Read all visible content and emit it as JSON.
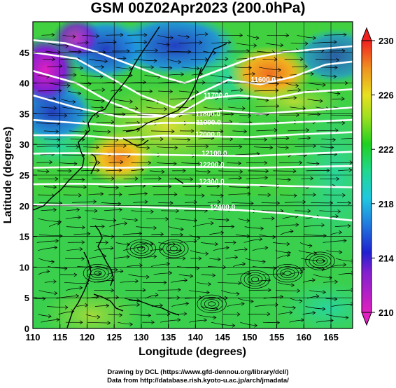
{
  "title": "GSM 00Z02Apr2023 (200.0hPa)",
  "chart_data": {
    "type": "heatmap",
    "title": "GSM 00Z02Apr2023 (200.0hPa)",
    "xlabel": "Longitude (degrees)",
    "ylabel": "Latitude  (degrees)",
    "xlim": [
      110,
      169
    ],
    "ylim": [
      0,
      50
    ],
    "xticks": [
      "110",
      "115",
      "120",
      "125",
      "130",
      "135",
      "140",
      "145",
      "150",
      "155",
      "160",
      "165"
    ],
    "yticks": [
      "0",
      "5",
      "10",
      "15",
      "20",
      "25",
      "30",
      "35",
      "40",
      "45"
    ],
    "colorbar": {
      "min": 210,
      "max": 230,
      "ticks": [
        "210",
        "214",
        "218",
        "222",
        "226",
        "230"
      ]
    },
    "contour_labels": [
      {
        "text": "11600.0",
        "lon": 152.5,
        "lat": 40.2
      },
      {
        "text": "11700.0",
        "lon": 143.8,
        "lat": 37.6
      },
      {
        "text": "11800.0",
        "lon": 142.3,
        "lat": 34.6
      },
      {
        "text": "11900.0",
        "lon": 142.4,
        "lat": 33.2
      },
      {
        "text": "12000.0",
        "lon": 142.3,
        "lat": 31.3
      },
      {
        "text": "12100.0",
        "lon": 143.5,
        "lat": 28.2
      },
      {
        "text": "12200.0",
        "lon": 143.0,
        "lat": 26.3
      },
      {
        "text": "12300.0",
        "lon": 143.0,
        "lat": 23.6
      },
      {
        "text": "12400.0",
        "lon": 145.0,
        "lat": 19.4
      }
    ],
    "grid": true
  },
  "credits": {
    "line1": "Drawing by DCL (https://www.gfd-dennou.org/library/dcl/)",
    "line2": "Data from http://database.rish.kyoto-u.ac.jp/arch/jmadata/"
  }
}
